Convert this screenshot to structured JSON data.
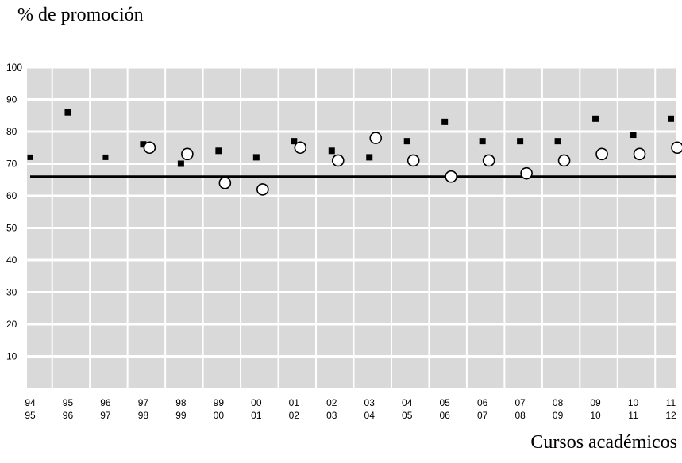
{
  "chart_data": {
    "type": "scatter",
    "ylabel": "% de promoción",
    "xlabel": "Cursos académicos",
    "ylim": [
      0,
      100
    ],
    "yticks": [
      10,
      20,
      30,
      40,
      50,
      60,
      70,
      80,
      90,
      100
    ],
    "grid": true,
    "categories": [
      {
        "top": "94",
        "bottom": "95"
      },
      {
        "top": "95",
        "bottom": "96"
      },
      {
        "top": "96",
        "bottom": "97"
      },
      {
        "top": "97",
        "bottom": "98"
      },
      {
        "top": "98",
        "bottom": "99"
      },
      {
        "top": "99",
        "bottom": "00"
      },
      {
        "top": "00",
        "bottom": "01"
      },
      {
        "top": "01",
        "bottom": "02"
      },
      {
        "top": "02",
        "bottom": "03"
      },
      {
        "top": "03",
        "bottom": "04"
      },
      {
        "top": "04",
        "bottom": "05"
      },
      {
        "top": "05",
        "bottom": "06"
      },
      {
        "top": "06",
        "bottom": "07"
      },
      {
        "top": "07",
        "bottom": "08"
      },
      {
        "top": "08",
        "bottom": "09"
      },
      {
        "top": "09",
        "bottom": "10"
      },
      {
        "top": "10",
        "bottom": "11"
      },
      {
        "top": "11",
        "bottom": "12"
      }
    ],
    "series": [
      {
        "marker": "square",
        "values": [
          72,
          86,
          72,
          76,
          70,
          74,
          72,
          77,
          74,
          72,
          77,
          83,
          77,
          77,
          77,
          84,
          79,
          84
        ]
      },
      {
        "marker": "circle",
        "values": [
          null,
          null,
          null,
          75,
          73,
          64,
          62,
          75,
          71,
          78,
          71,
          66,
          71,
          67,
          71,
          73,
          73,
          75
        ]
      }
    ],
    "reference_line": 66,
    "colors": {
      "background": "#d9d9d9",
      "grid": "#ffffff",
      "marker": "#000000",
      "circle_fill": "#ffffff",
      "reference": "#000000"
    }
  }
}
